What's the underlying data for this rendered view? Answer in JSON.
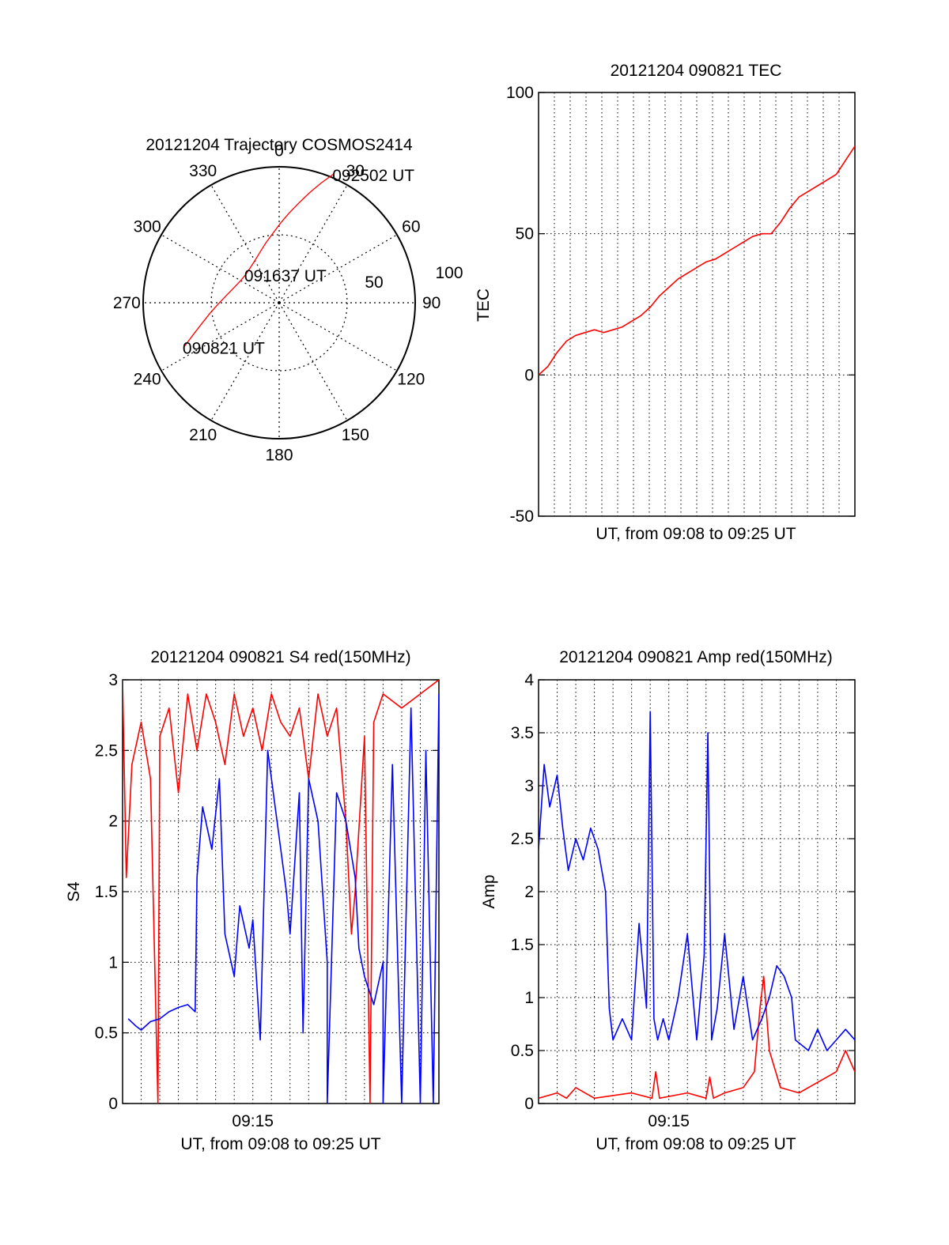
{
  "page": {
    "background": "#ffffff",
    "axis_color": "#000000",
    "grid_color": "#000000"
  },
  "chart_data": [
    {
      "id": "polar",
      "type": "scatter",
      "title": "20121204 Trajectory COSMOS2414",
      "coordinate_system": "polar",
      "azimuth_labels": [
        "0",
        "30",
        "60",
        "90",
        "120",
        "150",
        "180",
        "210",
        "240",
        "270",
        "300",
        "330"
      ],
      "radial_labels": [
        "50",
        "100"
      ],
      "trajectory_color": "#ff0000",
      "trajectory": [
        {
          "az": 245.2,
          "r": 76.9
        },
        {
          "az": 249.5,
          "r": 67.6
        },
        {
          "az": 254.8,
          "r": 59.1
        },
        {
          "az": 261.4,
          "r": 51.4
        },
        {
          "az": 269.1,
          "r": 44.6
        },
        {
          "az": 278.4,
          "r": 38.9
        },
        {
          "az": 289.5,
          "r": 34.7
        },
        {
          "az": 300.3,
          "r": 32.6
        },
        {
          "az": 310.5,
          "r": 32.2
        },
        {
          "az": 320.6,
          "r": 33.4
        },
        {
          "az": 330.7,
          "r": 36.0
        },
        {
          "az": 339.4,
          "r": 39.9
        },
        {
          "az": 347.3,
          "r": 45.0
        },
        {
          "az": 354.5,
          "r": 51.0
        },
        {
          "az": 0.8,
          "r": 58.3
        },
        {
          "az": 6.2,
          "r": 66.2
        },
        {
          "az": 11.0,
          "r": 74.5
        },
        {
          "az": 15.4,
          "r": 83.9
        },
        {
          "az": 19.2,
          "r": 93.0
        },
        {
          "az": 23.0,
          "r": 103.0
        }
      ],
      "annotations": [
        {
          "text": "090821 UT",
          "az": 245.2,
          "r": 76.9
        },
        {
          "text": "091637 UT",
          "az": 310.5,
          "r": 32.2
        },
        {
          "text": "092502 UT",
          "az": 23.0,
          "r": 103.0
        }
      ]
    },
    {
      "id": "tec",
      "type": "line",
      "title": "20121204 090821 TEC",
      "xlabel": "UT, from 09:08 to 09:25 UT",
      "ylabel": "TEC",
      "xlim": [
        0,
        17
      ],
      "ylim": [
        -50,
        100
      ],
      "yticks": [
        "-50",
        "0",
        "50",
        "100"
      ],
      "xticks": [],
      "grid": true,
      "series": [
        {
          "color": "#ff0000",
          "x": [
            0,
            0.5,
            1,
            1.5,
            2,
            2.5,
            3,
            3.5,
            4,
            4.5,
            5,
            5.5,
            6,
            6.5,
            7,
            7.5,
            8,
            8.5,
            9,
            9.5,
            10,
            10.5,
            11,
            11.5,
            12,
            12.5,
            13,
            13.5,
            14,
            14.5,
            15,
            15.5,
            16,
            16.5,
            17
          ],
          "y": [
            0,
            3,
            8,
            12,
            14,
            15,
            16,
            15,
            16,
            17,
            19,
            21,
            24,
            28,
            31,
            34,
            36,
            38,
            40,
            41,
            43,
            45,
            47,
            49,
            50,
            50,
            54,
            59,
            63,
            65,
            67,
            69,
            71,
            76,
            81
          ]
        }
      ]
    },
    {
      "id": "s4",
      "type": "line",
      "title": "20121204 090821 S4 red(150MHz)",
      "xlabel": "UT, from 09:08 to 09:25 UT",
      "ylabel": "S4",
      "xlim": [
        0,
        17
      ],
      "ylim": [
        0,
        3
      ],
      "yticks": [
        "0",
        "0.5",
        "1",
        "1.5",
        "2",
        "2.5",
        "3"
      ],
      "xticks": [
        {
          "label": "09:15",
          "x": 7
        }
      ],
      "grid": true,
      "series": [
        {
          "color": "#ff0000",
          "x": [
            0,
            0.2,
            0.5,
            1,
            1.5,
            1.9,
            2,
            2.5,
            3,
            3.5,
            4,
            4.5,
            5,
            5.5,
            6,
            6.5,
            7,
            7.5,
            8,
            8.5,
            9,
            9.5,
            10,
            10.5,
            11,
            11.5,
            12,
            12.3,
            12.5,
            13,
            13.3,
            13.5,
            14,
            15,
            16,
            17
          ],
          "y": [
            3,
            1.6,
            2.4,
            2.7,
            2.3,
            0,
            2.6,
            2.8,
            2.2,
            2.9,
            2.5,
            2.9,
            2.7,
            2.4,
            2.9,
            2.6,
            2.8,
            2.5,
            2.9,
            2.7,
            2.6,
            2.8,
            2.3,
            2.9,
            2.6,
            2.8,
            2.0,
            1.2,
            1.5,
            2.6,
            0,
            2.7,
            2.9,
            2.8,
            2.9,
            3
          ]
        },
        {
          "color": "#0000ff",
          "x": [
            0.3,
            0.7,
            1,
            1.5,
            2,
            2.5,
            3,
            3.5,
            3.9,
            4,
            4.3,
            4.8,
            5.2,
            5.5,
            6,
            6.3,
            6.8,
            7,
            7.4,
            7.8,
            8.3,
            8.8,
            9,
            9.5,
            9.7,
            10,
            10.5,
            11,
            11,
            11.5,
            12,
            12.5,
            12.7,
            13,
            13.5,
            14,
            14,
            14.5,
            15,
            15.5,
            16,
            16.3,
            16.7,
            17
          ],
          "y": [
            0.6,
            0.55,
            0.52,
            0.58,
            0.6,
            0.65,
            0.68,
            0.7,
            0.65,
            1.6,
            2.1,
            1.8,
            2.3,
            1.2,
            0.9,
            1.4,
            1.1,
            1.3,
            0.45,
            2.5,
            2.0,
            1.5,
            1.2,
            2.2,
            0.5,
            2.3,
            2.0,
            1.0,
            0,
            2.2,
            2.0,
            1.6,
            1.1,
            0.9,
            0.7,
            1.0,
            0,
            2.4,
            0,
            2.8,
            0,
            2.5,
            0,
            2.9
          ]
        }
      ]
    },
    {
      "id": "amp",
      "type": "line",
      "title": "20121204 090821 Amp red(150MHz)",
      "xlabel": "UT, from 09:08 to 09:25 UT",
      "ylabel": "Amp",
      "xlim": [
        0,
        17
      ],
      "ylim": [
        0,
        4
      ],
      "yticks": [
        "0",
        "0.5",
        "1",
        "1.5",
        "2",
        "2.5",
        "3",
        "3.5",
        "4"
      ],
      "xticks": [
        {
          "label": "09:15",
          "x": 7
        }
      ],
      "grid": true,
      "series": [
        {
          "color": "#ff0000",
          "x": [
            0,
            1,
            1.5,
            2,
            3,
            5,
            6.1,
            6.3,
            6.5,
            8,
            9,
            9.2,
            9.4,
            10,
            11,
            11.6,
            11.9,
            12.1,
            12.4,
            13,
            14,
            15,
            16,
            16.5,
            17
          ],
          "y": [
            0.05,
            0.1,
            0.05,
            0.15,
            0.05,
            0.1,
            0.05,
            0.3,
            0.05,
            0.1,
            0.05,
            0.25,
            0.05,
            0.1,
            0.15,
            0.3,
            0.9,
            1.2,
            0.5,
            0.15,
            0.1,
            0.2,
            0.3,
            0.5,
            0.3
          ]
        },
        {
          "color": "#0000ff",
          "x": [
            0,
            0.3,
            0.6,
            1,
            1.3,
            1.6,
            2,
            2.4,
            2.8,
            3.2,
            3.6,
            3.8,
            4,
            4.5,
            5,
            5.4,
            5.8,
            6.0,
            6.2,
            6.4,
            6.7,
            7,
            7.5,
            8,
            8.5,
            8.9,
            9.1,
            9.3,
            9.6,
            10,
            10.5,
            11,
            11.5,
            12,
            12.4,
            12.8,
            13.2,
            13.6,
            13.8,
            14.5,
            15,
            15.5,
            16,
            16.5,
            17
          ],
          "y": [
            2.4,
            3.2,
            2.8,
            3.1,
            2.6,
            2.2,
            2.5,
            2.3,
            2.6,
            2.4,
            2.0,
            0.9,
            0.6,
            0.8,
            0.6,
            1.7,
            0.9,
            3.7,
            0.8,
            0.6,
            0.8,
            0.6,
            1.0,
            1.6,
            0.6,
            1.4,
            3.5,
            0.6,
            0.9,
            1.6,
            0.7,
            1.2,
            0.6,
            0.8,
            1.0,
            1.3,
            1.2,
            1.0,
            0.6,
            0.5,
            0.7,
            0.5,
            0.6,
            0.7,
            0.6
          ]
        }
      ]
    }
  ]
}
